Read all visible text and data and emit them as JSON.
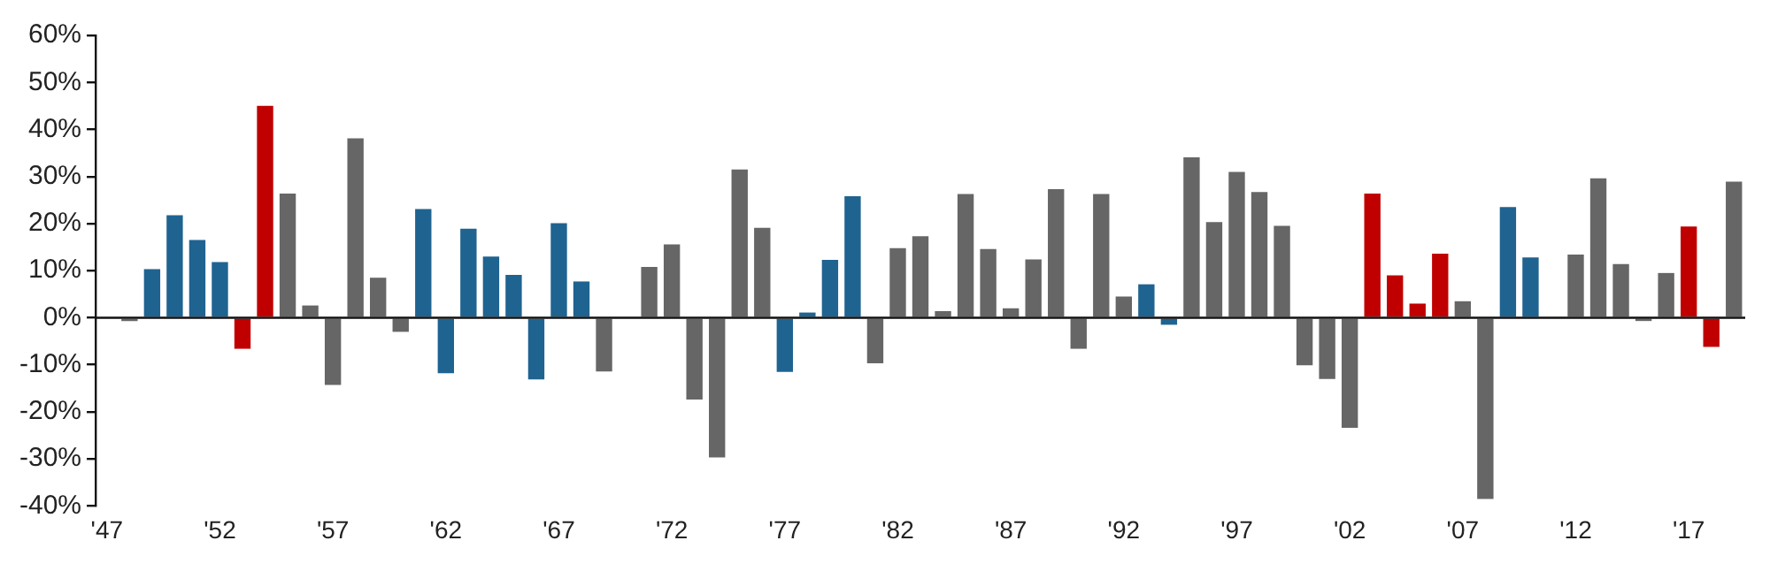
{
  "chart_data": {
    "type": "bar",
    "categories": [
      "'47",
      null,
      null,
      null,
      null,
      "'52",
      null,
      null,
      null,
      null,
      "'57",
      null,
      null,
      null,
      null,
      "'62",
      null,
      null,
      null,
      null,
      "'67",
      null,
      null,
      null,
      null,
      "'72",
      null,
      null,
      null,
      null,
      "'77",
      null,
      null,
      null,
      null,
      "'82",
      null,
      null,
      null,
      null,
      "'87",
      null,
      null,
      null,
      null,
      "'92",
      null,
      null,
      null,
      null,
      "'97",
      null,
      null,
      null,
      null,
      "'02",
      null,
      null,
      null,
      null,
      "'07",
      null,
      null,
      null,
      null,
      "'12",
      null,
      null,
      null,
      null,
      "'17",
      null,
      null
    ],
    "values": [
      0,
      -0.7,
      10.3,
      21.8,
      16.5,
      11.8,
      -6.6,
      45.0,
      26.4,
      2.6,
      -14.3,
      38.1,
      8.5,
      -3.0,
      23.1,
      -11.8,
      18.9,
      13.0,
      9.1,
      -13.1,
      20.1,
      7.7,
      -11.4,
      null,
      10.8,
      15.6,
      -17.4,
      -29.7,
      31.5,
      19.1,
      -11.5,
      1.1,
      12.3,
      25.8,
      -9.7,
      14.8,
      17.3,
      1.4,
      26.3,
      14.6,
      2.0,
      12.4,
      27.3,
      -6.6,
      26.3,
      4.5,
      7.1,
      -1.5,
      34.1,
      20.3,
      31.0,
      26.7,
      19.5,
      -10.1,
      -13.0,
      -23.4,
      26.4,
      9.0,
      3.0,
      13.6,
      3.5,
      -38.5,
      23.5,
      12.8,
      0,
      13.4,
      29.6,
      11.4,
      -0.7,
      9.5,
      19.4,
      -6.2,
      28.9
    ],
    "colors": [
      "#666666",
      "#666666",
      "#1f6391",
      "#1f6391",
      "#1f6391",
      "#1f6391",
      "#c00000",
      "#c00000",
      "#666666",
      "#666666",
      "#666666",
      "#666666",
      "#666666",
      "#666666",
      "#1f6391",
      "#1f6391",
      "#1f6391",
      "#1f6391",
      "#1f6391",
      "#1f6391",
      "#1f6391",
      "#1f6391",
      "#666666",
      "#666666",
      "#666666",
      "#666666",
      "#666666",
      "#666666",
      "#666666",
      "#666666",
      "#1f6391",
      "#1f6391",
      "#1f6391",
      "#1f6391",
      "#666666",
      "#666666",
      "#666666",
      "#666666",
      "#666666",
      "#666666",
      "#666666",
      "#666666",
      "#666666",
      "#666666",
      "#666666",
      "#666666",
      "#1f6391",
      "#1f6391",
      "#666666",
      "#666666",
      "#666666",
      "#666666",
      "#666666",
      "#666666",
      "#666666",
      "#666666",
      "#c00000",
      "#c00000",
      "#c00000",
      "#c00000",
      "#666666",
      "#666666",
      "#1f6391",
      "#1f6391",
      "#666666",
      "#666666",
      "#666666",
      "#666666",
      "#666666",
      "#666666",
      "#c00000",
      "#c00000",
      "#666666"
    ],
    "ylim": [
      -40,
      60
    ],
    "yticks": [
      {
        "value": -40,
        "label": "-40%"
      },
      {
        "value": -30,
        "label": "-30%"
      },
      {
        "value": -20,
        "label": "-20%"
      },
      {
        "value": -10,
        "label": "-10%"
      },
      {
        "value": 0,
        "label": "0%"
      },
      {
        "value": 10,
        "label": "10%"
      },
      {
        "value": 20,
        "label": "20%"
      },
      {
        "value": 30,
        "label": "30%"
      },
      {
        "value": 40,
        "label": "40%"
      },
      {
        "value": 50,
        "label": "50%"
      },
      {
        "value": 60,
        "label": "60%"
      }
    ],
    "ref_lines": [
      {
        "axis": "y",
        "value": 0,
        "color": "#111111"
      }
    ],
    "grid": false,
    "legend": false
  }
}
